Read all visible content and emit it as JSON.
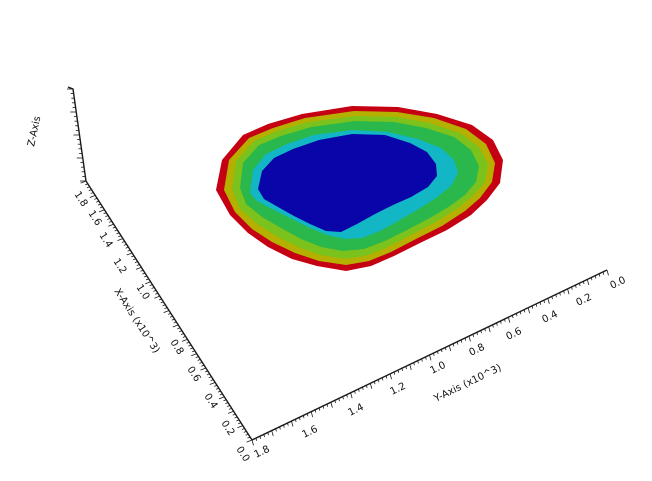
{
  "axes": {
    "z": {
      "label": "Z-Axis"
    },
    "x": {
      "label": "X-Axis (x10^3)",
      "ticks": [
        "1.8",
        "1.6",
        "1.4",
        "1.2",
        "1.0",
        "0.8",
        "0.6",
        "0.4",
        "0.2",
        "0.0"
      ]
    },
    "y": {
      "label": "Y-Axis (x10^3)",
      "ticks": [
        "1.8",
        "1.6",
        "1.4",
        "1.2",
        "1.0",
        "0.8",
        "0.6",
        "0.4",
        "0.2",
        "0.0"
      ]
    }
  },
  "colors": {
    "red": "#c40012",
    "olive": "#b5b000",
    "lime": "#7bc21c",
    "green": "#2ab84c",
    "cyan": "#13b6c4",
    "blue": "#0a05a8",
    "axis": "#1a1a1a"
  }
}
